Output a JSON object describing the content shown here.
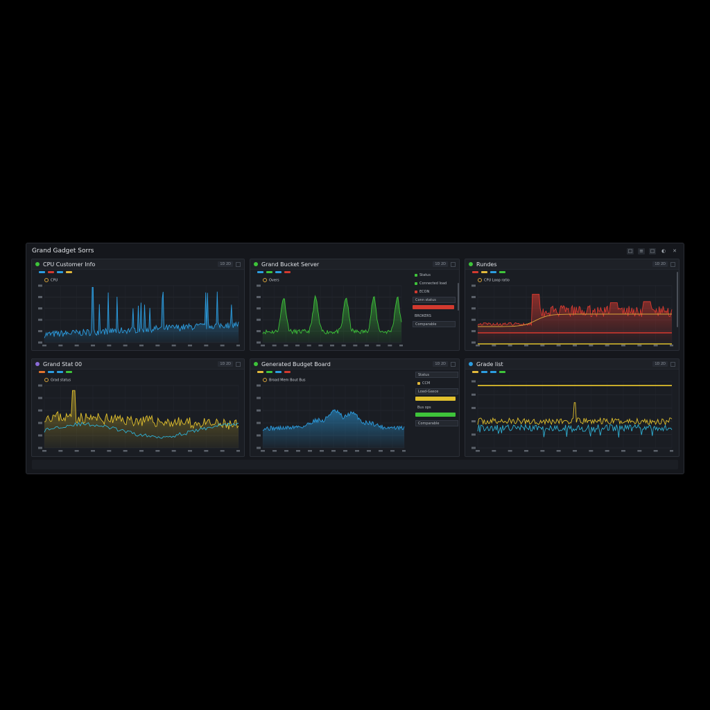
{
  "window": {
    "title": "Grand Gadget Sorrs",
    "controls": [
      "□",
      "≡",
      "□",
      "◐",
      "✕"
    ]
  },
  "panels": [
    {
      "title": "CPU Customer Info",
      "sub_label": "CPU",
      "accent": "#2c9de0",
      "tools": [
        "1D 2D",
        "□"
      ],
      "legend": [
        "#2c9de0",
        "#d23a2f",
        "#2c9de0",
        "#e2b93b"
      ]
    },
    {
      "title": "Grand Bucket Server",
      "sub_label": "Overs",
      "accent": "#3ec43a",
      "tools": [
        "1D 2D",
        "□"
      ],
      "legend": [
        "#2c9de0",
        "#3ec43a",
        "#2c9de0",
        "#d23a2f"
      ],
      "side": {
        "items": [
          "Status",
          "Connected load",
          "ECON",
          "Conn status",
          "BROKERS",
          "Comparable"
        ]
      }
    },
    {
      "title": "Rundes",
      "sub_label": "CPU Loop ratio",
      "accent": "#d83a30",
      "tools": [
        "1D 2D",
        "□"
      ],
      "legend": [
        "#d23a2f",
        "#e2b93b",
        "#2c9de0",
        "#3ec43a"
      ]
    },
    {
      "title": "Grand Stat 00",
      "sub_label": "Grad status",
      "accent": "#e2b93b",
      "tools": [
        "1D 2D",
        "□"
      ],
      "legend": [
        "#e3742e",
        "#2c9de0",
        "#2c9de0",
        "#3ec43a"
      ]
    },
    {
      "title": "Generated Budget Board",
      "sub_label": "Broad Mem Bout Bus",
      "accent": "#2c9de0",
      "tools": [
        "1D 2D",
        "□"
      ],
      "legend": [
        "#e2b93b",
        "#3ec43a",
        "#2c9de0",
        "#d23a2f"
      ],
      "side": {
        "items": [
          "Status",
          "CCM",
          "Load-Gasce",
          "Bus ops",
          "Comparable"
        ]
      }
    },
    {
      "title": "Grade list",
      "sub_label": "",
      "accent": "#e2b93b",
      "tools": [
        "1D 2D",
        "□"
      ],
      "legend": [
        "#e2b93b",
        "#2c9de0",
        "#2c9de0",
        "#3ec43a"
      ]
    }
  ],
  "colors": {
    "blue": "#2c9de0",
    "green": "#3ec43a",
    "red": "#d83a30",
    "yellow": "#e2c12d",
    "cyan": "#2fb2d6"
  }
}
